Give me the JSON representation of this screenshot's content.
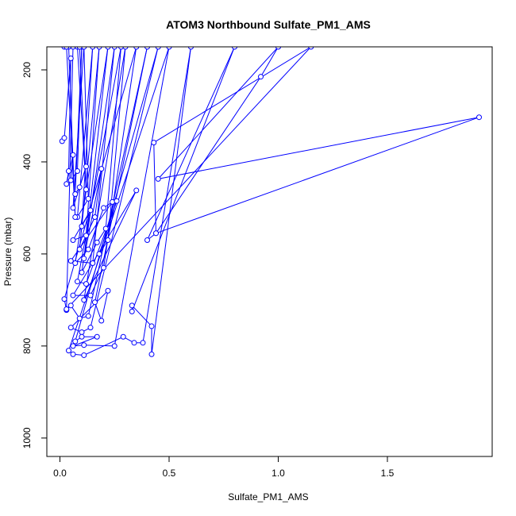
{
  "chart_data": {
    "type": "line",
    "title": "ATOM3 Northbound Sulfate_PM1_AMS",
    "xlabel": "Sulfate_PM1_AMS",
    "ylabel": "Pressure (mbar)",
    "xlim": [
      -0.06,
      1.98
    ],
    "ylim": [
      1040,
      150
    ],
    "y_reversed": true,
    "xticks": [
      0.0,
      0.5,
      1.0,
      1.5
    ],
    "xtick_labels": [
      "0.0",
      "0.5",
      "1.0",
      "1.5"
    ],
    "yticks": [
      200,
      400,
      600,
      800,
      1000
    ],
    "ytick_labels": [
      "200",
      "400",
      "600",
      "800",
      "1000"
    ],
    "grid": false,
    "legend": "none",
    "color": "#0000ff",
    "marker": "open-circle",
    "series": [
      {
        "points": [
          [
            0.01,
            355
          ],
          [
            0.02,
            348
          ],
          [
            0.05,
            175
          ],
          [
            0.04,
            420
          ],
          [
            0.03,
            448
          ],
          [
            0.06,
            385
          ],
          [
            0.05,
            440
          ],
          [
            0.08,
            420
          ],
          [
            0.1,
            150
          ],
          [
            0.07,
            470
          ],
          [
            0.09,
            455
          ],
          [
            0.12,
            410
          ],
          [
            0.06,
            500
          ],
          [
            0.11,
            150
          ],
          [
            0.13,
            480
          ],
          [
            0.08,
            520
          ],
          [
            0.15,
            150
          ],
          [
            0.1,
            540
          ],
          [
            0.14,
            505
          ],
          [
            0.06,
            570
          ],
          [
            0.12,
            560
          ],
          [
            0.18,
            150
          ],
          [
            0.09,
            590
          ],
          [
            0.16,
            520
          ],
          [
            0.19,
            415
          ],
          [
            0.11,
            610
          ],
          [
            0.22,
            150
          ],
          [
            0.07,
            620
          ],
          [
            0.13,
            590
          ],
          [
            0.2,
            500
          ],
          [
            0.24,
            487
          ],
          [
            0.05,
            615
          ],
          [
            0.15,
            620
          ],
          [
            0.25,
            150
          ],
          [
            0.1,
            640
          ],
          [
            0.17,
            575
          ],
          [
            0.21,
            545
          ],
          [
            0.28,
            150
          ],
          [
            0.08,
            660
          ],
          [
            0.12,
            665
          ],
          [
            0.26,
            485
          ],
          [
            0.18,
            600
          ],
          [
            0.22,
            570
          ],
          [
            0.3,
            150
          ],
          [
            0.11,
            700
          ],
          [
            0.35,
            462
          ],
          [
            0.06,
            690
          ],
          [
            0.14,
            690
          ],
          [
            0.2,
            630
          ],
          [
            0.35,
            150
          ],
          [
            0.02,
            698
          ],
          [
            0.03,
            722
          ],
          [
            0.05,
            712
          ],
          [
            0.09,
            740
          ],
          [
            0.13,
            735
          ],
          [
            0.4,
            150
          ],
          [
            0.16,
            705
          ],
          [
            0.19,
            745
          ],
          [
            0.22,
            680
          ],
          [
            0.05,
            760
          ],
          [
            0.1,
            770
          ],
          [
            0.14,
            760
          ],
          [
            0.45,
            150
          ],
          [
            0.07,
            790
          ],
          [
            0.1,
            780
          ],
          [
            0.17,
            780
          ],
          [
            0.06,
            800
          ],
          [
            0.11,
            798
          ],
          [
            0.25,
            800
          ],
          [
            0.5,
            150
          ],
          [
            0.04,
            810
          ],
          [
            0.06,
            818
          ],
          [
            0.11,
            820
          ],
          [
            0.29,
            780
          ],
          [
            0.34,
            793
          ],
          [
            0.38,
            793
          ],
          [
            0.6,
            150
          ],
          [
            0.42,
            818
          ],
          [
            0.42,
            757
          ],
          [
            0.33,
            712
          ],
          [
            0.33,
            725
          ],
          [
            0.8,
            150
          ],
          [
            0.4,
            570
          ],
          [
            0.44,
            555
          ],
          [
            0.92,
            215
          ],
          [
            1.0,
            150
          ],
          [
            0.45,
            437
          ],
          [
            1.92,
            303
          ],
          [
            0.44,
            555
          ],
          [
            0.43,
            358
          ],
          [
            1.15,
            150
          ],
          [
            0.03,
            720
          ],
          [
            0.06,
            150
          ],
          [
            0.02,
            150
          ],
          [
            0.04,
            150
          ],
          [
            0.07,
            520
          ],
          [
            0.03,
            150
          ],
          [
            0.08,
            150
          ],
          [
            0.12,
            460
          ],
          [
            0.09,
            150
          ]
        ]
      }
    ]
  }
}
